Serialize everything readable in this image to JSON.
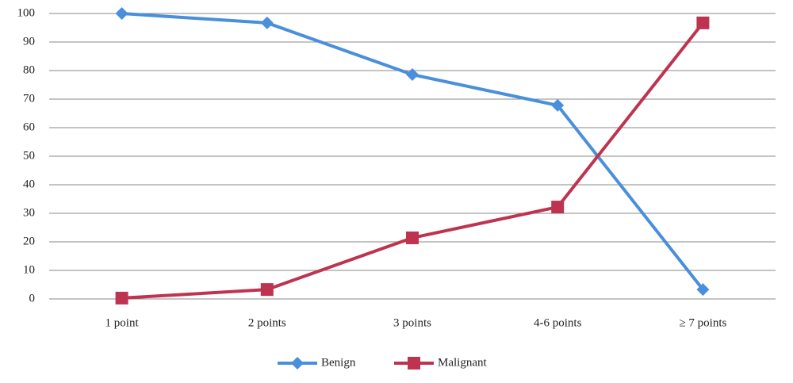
{
  "chart_data": {
    "type": "line",
    "categories": [
      "1 point",
      "2 points",
      "3 points",
      "4-6 points",
      "≥ 7 points"
    ],
    "series": [
      {
        "name": "Benign",
        "color": "#4a8fdc",
        "marker": "diamond",
        "values": [
          100,
          96.7,
          78.6,
          67.8,
          3.3
        ]
      },
      {
        "name": "Malignant",
        "color": "#be3450",
        "marker": "square",
        "values": [
          0.3,
          3.3,
          21.4,
          32.2,
          96.7
        ]
      }
    ],
    "ylim": [
      0,
      100
    ],
    "yticks": [
      0,
      10,
      20,
      30,
      40,
      50,
      60,
      70,
      80,
      90,
      100
    ],
    "grid": true,
    "legend": "bottom"
  }
}
